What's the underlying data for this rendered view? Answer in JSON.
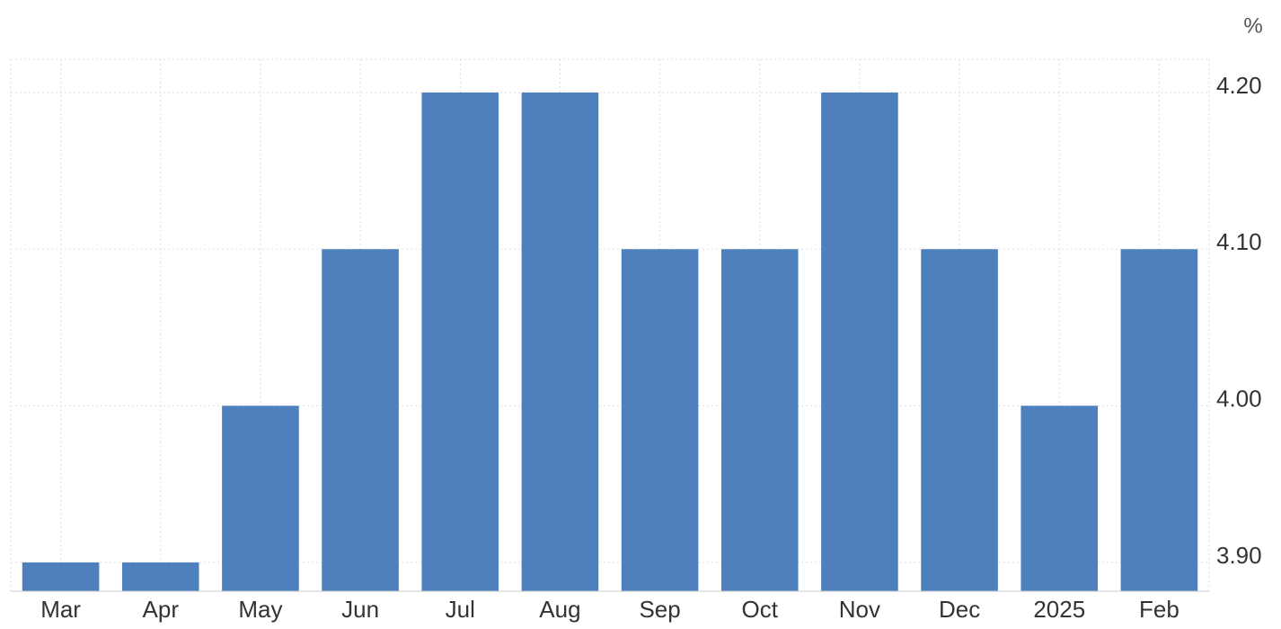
{
  "chart_data": {
    "type": "bar",
    "unit_label": "%",
    "categories": [
      "Mar",
      "Apr",
      "May",
      "Jun",
      "Jul",
      "Aug",
      "Sep",
      "Oct",
      "Nov",
      "Dec",
      "2025",
      "Feb"
    ],
    "values": [
      3.9,
      3.9,
      4.0,
      4.1,
      4.2,
      4.2,
      4.1,
      4.1,
      4.2,
      4.1,
      4.0,
      4.1
    ],
    "color": "#4e80bd",
    "ylim": [
      3.8816,
      4.2212
    ],
    "yticks": [
      {
        "value": 3.9,
        "label": "3.90"
      },
      {
        "value": 4.0,
        "label": "4.00"
      },
      {
        "value": 4.1,
        "label": "4.10"
      },
      {
        "value": 4.2,
        "label": "4.20"
      }
    ],
    "grid": true,
    "y_axis_side": "right"
  }
}
